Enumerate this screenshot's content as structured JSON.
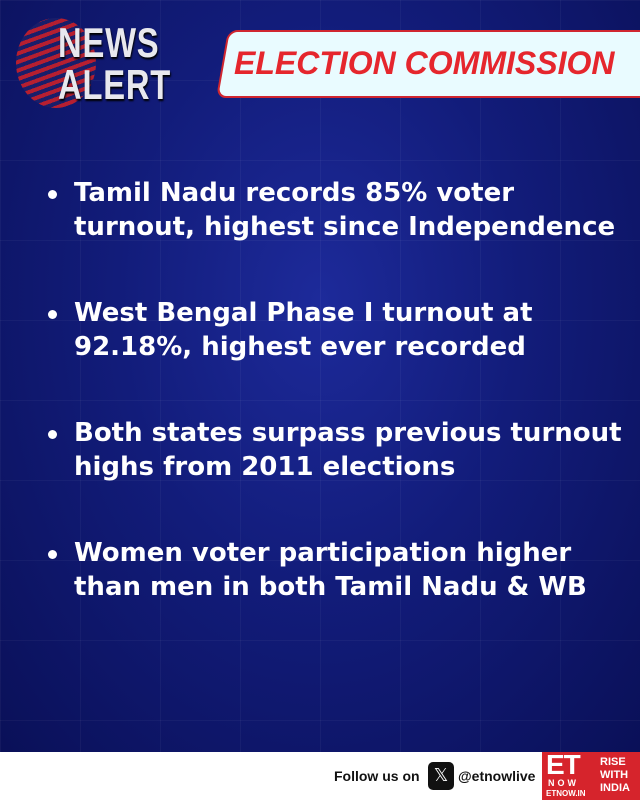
{
  "header": {
    "logo_text": "NEWS ALERT",
    "logo_line1": "NEWS",
    "logo_line2": "ALERT",
    "banner": "ELECTION COMMISSION"
  },
  "bullets": [
    "Tamil Nadu records 85% voter turnout, highest since Independence",
    "West Bengal Phase I turnout at 92.18%, highest ever recorded",
    "Both states surpass previous turnout highs from 2011 elections",
    "Women voter participation higher than men in both Tamil Nadu & WB"
  ],
  "footer": {
    "follow": "Follow us on",
    "handle": "@etnowlive",
    "x_icon": "x-logo-icon",
    "brand_top": "ET",
    "brand_now": "NOW",
    "brand_site": "ETNOW.IN",
    "tagline_1": "RISE",
    "tagline_2": "WITH",
    "tagline_3": "INDIA"
  },
  "colors": {
    "background": "#121c7a",
    "accent": "#e5262d",
    "banner_bg": "#e9fbff"
  }
}
